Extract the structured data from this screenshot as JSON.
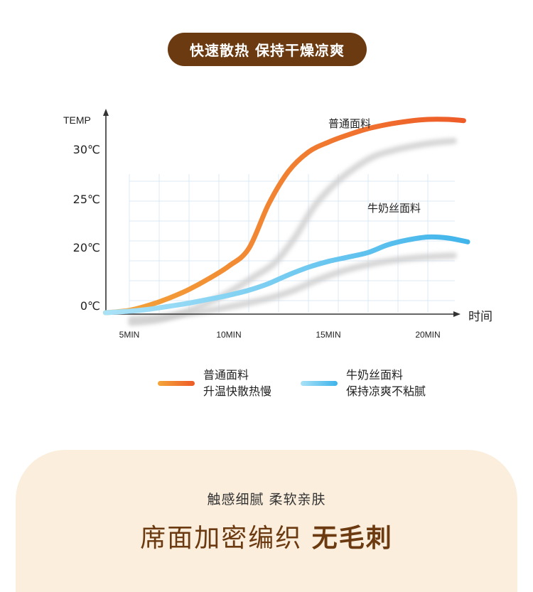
{
  "header": {
    "badge": "快速散热 保持干燥凉爽"
  },
  "chart_data": {
    "type": "line",
    "ylabel": "TEMP",
    "xlabel": "时间",
    "y_ticks": [
      {
        "value": 0,
        "label": "0℃"
      },
      {
        "value": 20,
        "label": "20℃"
      },
      {
        "value": 25,
        "label": "25℃"
      },
      {
        "value": 30,
        "label": "30℃"
      }
    ],
    "x_ticks": [
      {
        "value": 5,
        "label": "5MIN"
      },
      {
        "value": 10,
        "label": "10MIN"
      },
      {
        "value": 15,
        "label": "15MIN"
      },
      {
        "value": 20,
        "label": "20MIN"
      }
    ],
    "grid": true,
    "series": [
      {
        "name": "普通面料",
        "color_start": "#f4a63a",
        "color_end": "#ee5a28",
        "points": [
          [
            3.8,
            0
          ],
          [
            5,
            0.8
          ],
          [
            6,
            2.6
          ],
          [
            7,
            5
          ],
          [
            8,
            8
          ],
          [
            9,
            11.7
          ],
          [
            10,
            16
          ],
          [
            11,
            20.6
          ],
          [
            12,
            25.2
          ],
          [
            13,
            28.5
          ],
          [
            14,
            30.7
          ],
          [
            15,
            32.3
          ],
          [
            16,
            33.5
          ],
          [
            17,
            34.5
          ],
          [
            18,
            35.2
          ],
          [
            19,
            35.7
          ],
          [
            20,
            36
          ],
          [
            21,
            36
          ],
          [
            21.8,
            35.8
          ]
        ]
      },
      {
        "name": "牛奶丝面料",
        "color_start": "#a9e2f7",
        "color_end": "#3db3ea",
        "points": [
          [
            3.8,
            0
          ],
          [
            5,
            0.5
          ],
          [
            6,
            1.2
          ],
          [
            7,
            2.2
          ],
          [
            8,
            3.3
          ],
          [
            9,
            4.6
          ],
          [
            10,
            6
          ],
          [
            11,
            7.7
          ],
          [
            12,
            10
          ],
          [
            13,
            13
          ],
          [
            14,
            15.6
          ],
          [
            15,
            17.6
          ],
          [
            16,
            19.1
          ],
          [
            17,
            20.2
          ],
          [
            18,
            21
          ],
          [
            19,
            21.5
          ],
          [
            20,
            21.8
          ],
          [
            21,
            21.7
          ],
          [
            22,
            21.3
          ]
        ]
      }
    ],
    "legend": [
      {
        "line1": "普通面料",
        "line2": "升温快散热慢",
        "color": "#ee6a2c"
      },
      {
        "line1": "牛奶丝面料",
        "line2": "保持凉爽不粘腻",
        "color": "#4cbdee"
      }
    ]
  },
  "bottom": {
    "subtitle": "触感细腻  柔软亲肤",
    "title_normal": "席面加密编织 ",
    "title_bold": "无毛刺"
  }
}
